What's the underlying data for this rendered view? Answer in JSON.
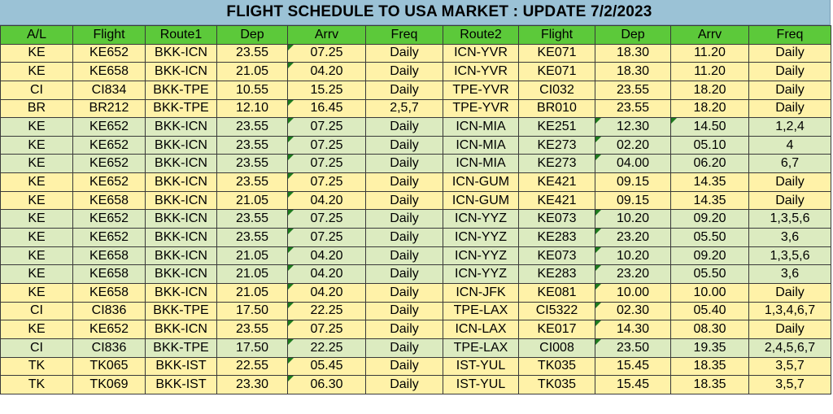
{
  "title": "FLIGHT SCHEDULE TO USA MARKET  : UPDATE 7/2/2023",
  "headers": [
    "A/L",
    "Flight",
    "Route1",
    "Dep",
    "Arrv",
    "Freq",
    "Route2",
    "Flight",
    "Dep",
    "Arrv",
    "Freq"
  ],
  "colors": {
    "title_bg": "#9bc2d6",
    "header_bg": "#5cc93a",
    "row_yellow": "#fff2a8",
    "row_green": "#dcebc0",
    "comment_marker": "#1e7b1e"
  },
  "rows": [
    {
      "tone": "yellow",
      "cells": [
        "KE",
        "KE652",
        "BKK-ICN",
        "23.55",
        "07.25",
        "Daily",
        "ICN-YVR",
        "KE071",
        "18.30",
        "11.20",
        "Daily"
      ]
    },
    {
      "tone": "yellow",
      "cells": [
        "KE",
        "KE658",
        "BKK-ICN",
        "21.05",
        "04.20",
        "Daily",
        "ICN-YVR",
        "KE071",
        "18.30",
        "11.20",
        "Daily"
      ]
    },
    {
      "tone": "yellow",
      "cells": [
        "CI",
        "CI834",
        "BKK-TPE",
        "10.55",
        "15.25",
        "Daily",
        "TPE-YVR",
        "CI032",
        "23.55",
        "18.20",
        "Daily"
      ]
    },
    {
      "tone": "yellow",
      "cells": [
        "BR",
        "BR212",
        "BKK-TPE",
        "12.10",
        "16.45",
        "2,5,7",
        "TPE-YVR",
        "BR010",
        "23.55",
        "18.20",
        "Daily"
      ]
    },
    {
      "tone": "green",
      "cells": [
        "KE",
        "KE652",
        "BKK-ICN",
        "23.55",
        "07.25",
        "Daily",
        "ICN-MIA",
        "KE251",
        "12.30",
        "14.50",
        "1,2,4"
      ]
    },
    {
      "tone": "green",
      "cells": [
        "KE",
        "KE652",
        "BKK-ICN",
        "23.55",
        "07.25",
        "Daily",
        "ICN-MIA",
        "KE273",
        "02.20",
        "05.10",
        "4"
      ]
    },
    {
      "tone": "green",
      "cells": [
        "KE",
        "KE652",
        "BKK-ICN",
        "23.55",
        "07.25",
        "Daily",
        "ICN-MIA",
        "KE273",
        "04.00",
        "06.20",
        "6,7"
      ]
    },
    {
      "tone": "yellow",
      "cells": [
        "KE",
        "KE652",
        "BKK-ICN",
        "23.55",
        "07.25",
        "Daily",
        "ICN-GUM",
        "KE421",
        "09.15",
        "14.35",
        "Daily"
      ]
    },
    {
      "tone": "yellow",
      "cells": [
        "KE",
        "KE658",
        "BKK-ICN",
        "21.05",
        "04.20",
        "Daily",
        "ICN-GUM",
        "KE421",
        "09.15",
        "14.35",
        "Daily"
      ]
    },
    {
      "tone": "green",
      "cells": [
        "KE",
        "KE652",
        "BKK-ICN",
        "23.55",
        "07.25",
        "Daily",
        "ICN-YYZ",
        "KE073",
        "10.20",
        "09.20",
        "1,3,5,6"
      ]
    },
    {
      "tone": "green",
      "cells": [
        "KE",
        "KE652",
        "BKK-ICN",
        "23.55",
        "07.25",
        "Daily",
        "ICN-YYZ",
        "KE283",
        "23.20",
        "05.50",
        "3,6"
      ]
    },
    {
      "tone": "green",
      "cells": [
        "KE",
        "KE658",
        "BKK-ICN",
        "21.05",
        "04.20",
        "Daily",
        "ICN-YYZ",
        "KE073",
        "10.20",
        "09.20",
        "1,3,5,6"
      ]
    },
    {
      "tone": "green",
      "cells": [
        "KE",
        "KE658",
        "BKK-ICN",
        "21.05",
        "04.20",
        "Daily",
        "ICN-YYZ",
        "KE283",
        "23.20",
        "05.50",
        "3,6"
      ]
    },
    {
      "tone": "yellow",
      "cells": [
        "KE",
        "KE658",
        "BKK-ICN",
        "21.05",
        "04.20",
        "Daily",
        "ICN-JFK",
        "KE081",
        "10.00",
        "10.00",
        "Daily"
      ]
    },
    {
      "tone": "yellow",
      "cells": [
        "CI",
        "CI836",
        "BKK-TPE",
        "17.50",
        "22.25",
        "Daily",
        "TPE-LAX",
        "CI5322",
        "02.30",
        "05.40",
        "1,3,4,6,7"
      ]
    },
    {
      "tone": "yellow",
      "cells": [
        "KE",
        "KE652",
        "BKK-ICN",
        "23.55",
        "07.25",
        "Daily",
        "ICN-LAX",
        "KE017",
        "14.30",
        "08.30",
        "Daily"
      ]
    },
    {
      "tone": "green",
      "cells": [
        "CI",
        "CI836",
        "BKK-TPE",
        "17.50",
        "22.25",
        "Daily",
        "TPE-LAX",
        "CI008",
        "23.50",
        "19.35",
        "2,4,5,6,7"
      ]
    },
    {
      "tone": "yellow",
      "cells": [
        "TK",
        "TK065",
        "BKK-IST",
        "22.55",
        "05.45",
        "Daily",
        "IST-YUL",
        "TK035",
        "15.45",
        "18.35",
        "3,5,7"
      ]
    },
    {
      "tone": "yellow",
      "cells": [
        "TK",
        "TK069",
        "BKK-IST",
        "23.30",
        "06.30",
        "Daily",
        "IST-YUL",
        "TK035",
        "15.45",
        "18.35",
        "3,5,7"
      ]
    }
  ]
}
